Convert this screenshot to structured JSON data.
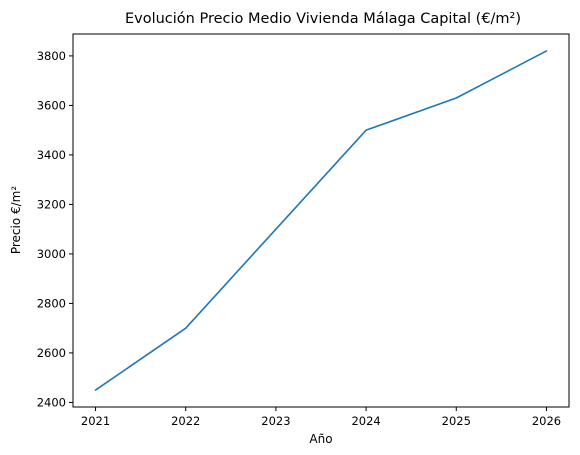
{
  "chart_data": {
    "type": "line",
    "title": "Evolución Precio Medio Vivienda Málaga Capital (€/m²)",
    "xlabel": "Año",
    "ylabel": "Precio €/m²",
    "x": [
      2021,
      2022,
      2023,
      2024,
      2025,
      2026
    ],
    "series": [
      {
        "values": [
          2450,
          2700,
          3100,
          3500,
          3630,
          3820
        ]
      }
    ],
    "xticks": [
      2021,
      2022,
      2023,
      2024,
      2025,
      2026
    ],
    "yticks": [
      2400,
      2600,
      2800,
      3000,
      3200,
      3400,
      3600,
      3800
    ],
    "xlim": [
      2020.75,
      2026.25
    ],
    "ylim": [
      2381.5,
      3888.5
    ],
    "grid": false,
    "line_color": "#1f77b4"
  }
}
